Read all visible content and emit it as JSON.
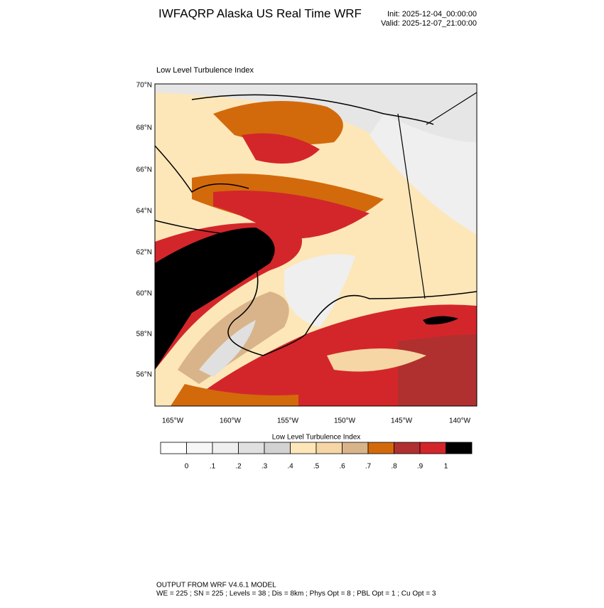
{
  "header": {
    "title": "IWFAQRP Alaska US Real Time WRF",
    "init": "Init: 2025-12-04_00:00:00",
    "valid": "Valid: 2025-12-07_21:00:00"
  },
  "map": {
    "title": "Low Level Turbulence Index",
    "lat_labels": [
      "70°N",
      "68°N",
      "66°N",
      "64°N",
      "62°N",
      "60°N",
      "58°N",
      "56°N"
    ],
    "lon_labels": [
      "165°W",
      "160°W",
      "155°W",
      "150°W",
      "145°W",
      "140°W"
    ]
  },
  "colorbar": {
    "title": "Low Level Turbulence Index",
    "colors": [
      "#ffffff",
      "#f7f7f7",
      "#efefef",
      "#e0e0e0",
      "#d2d2d2",
      "#fde7b9",
      "#f5d6a4",
      "#d9b48a",
      "#d26a0c",
      "#b0302f",
      "#d3262b",
      "#000000"
    ],
    "labels": [
      {
        "value": 0,
        "label": "0"
      },
      {
        "value": 0.1,
        "label": ".1"
      },
      {
        "value": 0.2,
        "label": ".2"
      },
      {
        "value": 0.3,
        "label": ".3"
      },
      {
        "value": 0.4,
        "label": ".4"
      },
      {
        "value": 0.5,
        "label": ".5"
      },
      {
        "value": 0.6,
        "label": ".6"
      },
      {
        "value": 0.7,
        "label": ".7"
      },
      {
        "value": 0.8,
        "label": ".8"
      },
      {
        "value": 0.9,
        "label": ".9"
      },
      {
        "value": 1,
        "label": "1"
      }
    ]
  },
  "footer": {
    "line1": "OUTPUT FROM WRF V4.6.1 MODEL",
    "line2": "WE = 225 ; SN = 225 ; Levels = 38 ; Dis = 8km ; Phys Opt = 8 ; PBL Opt = 1 ; Cu Opt = 3"
  }
}
